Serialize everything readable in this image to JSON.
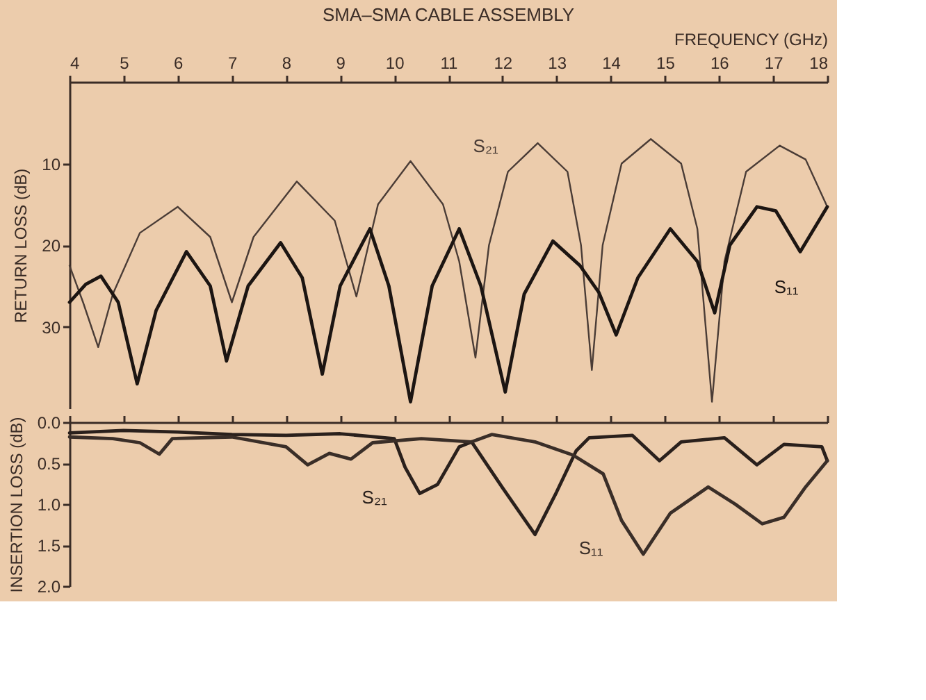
{
  "chart_data": [
    {
      "type": "line",
      "title": "SMA–SMA CABLE ASSEMBLY",
      "xlabel": "FREQUENCY (GHz)",
      "ylabel": "RETURN LOSS (dB)",
      "xlim": [
        4,
        18
      ],
      "xticks": [
        4,
        5,
        6,
        7,
        8,
        9,
        10,
        11,
        12,
        13,
        14,
        15,
        16,
        17,
        18
      ],
      "ylim": [
        40,
        0
      ],
      "yticks": [
        10,
        20,
        30
      ],
      "grid": false,
      "series": [
        {
          "name": "S₂₁",
          "color": "#4a3c36",
          "x": [
            4.0,
            4.25,
            4.53,
            4.8,
            5.3,
            6.0,
            6.6,
            7.0,
            7.4,
            8.2,
            8.9,
            9.3,
            9.7,
            10.3,
            10.9,
            11.2,
            11.5,
            11.75,
            12.1,
            12.65,
            13.2,
            13.45,
            13.65,
            13.85,
            14.2,
            14.74,
            15.3,
            15.6,
            15.87,
            16.1,
            16.5,
            17.12,
            17.6,
            18.0
          ],
          "values": [
            22.5,
            27,
            32.5,
            26,
            18.5,
            15.3,
            19,
            27,
            19,
            12.2,
            17,
            26.3,
            15,
            9.7,
            15,
            22,
            33.8,
            20,
            11,
            7.5,
            11,
            20,
            35.3,
            20,
            10,
            7,
            10,
            18,
            39.2,
            22,
            11,
            7.8,
            9.5,
            15.3
          ]
        },
        {
          "name": "S₁₁",
          "color": "#1c1512",
          "x": [
            4.0,
            4.3,
            4.58,
            4.9,
            5.25,
            5.6,
            6.16,
            6.6,
            6.9,
            7.3,
            7.9,
            8.3,
            8.67,
            9.0,
            9.55,
            9.9,
            10.3,
            10.7,
            11.2,
            11.6,
            12.05,
            12.4,
            12.93,
            13.43,
            13.78,
            14.1,
            14.5,
            15.1,
            15.6,
            15.92,
            16.2,
            16.7,
            17.05,
            17.5,
            18.0
          ],
          "values": [
            27,
            24.8,
            23.8,
            27,
            37,
            28,
            20.8,
            25,
            34.2,
            25,
            19.7,
            24,
            35.8,
            25,
            18,
            25,
            39.2,
            25,
            18,
            25,
            38,
            26,
            19.5,
            22.5,
            25.8,
            31,
            24,
            18,
            22,
            28.3,
            20,
            15.3,
            15.8,
            20.8,
            15.3
          ]
        }
      ]
    },
    {
      "type": "line",
      "ylabel": "INSERTION LOSS (dB)",
      "xlim": [
        4,
        18
      ],
      "xticks": [
        4,
        5,
        6,
        7,
        8,
        9,
        10,
        11,
        12,
        13,
        14,
        15,
        16,
        17,
        18
      ],
      "ylim": [
        2,
        0
      ],
      "yticks": [
        {
          "value": 0,
          "label": "0.0"
        },
        {
          "value": 0.5,
          "label": "0.5"
        },
        {
          "value": 1,
          "label": "1.0"
        },
        {
          "value": 1.5,
          "label": "1.5"
        },
        {
          "value": 2,
          "label": "2.0"
        }
      ],
      "tick_labels": "y",
      "grid": false,
      "series": [
        {
          "name": "S₂₁",
          "color": "#2a201c",
          "x": [
            4.0,
            5.0,
            6.0,
            7.0,
            8.0,
            9.0,
            10.0,
            10.2,
            10.47,
            10.8,
            11.2,
            11.43,
            12.0,
            12.6,
            13.0,
            13.36,
            13.6,
            14.4,
            14.9,
            15.3,
            16.1,
            16.7,
            17.2,
            17.9,
            18.0
          ],
          "values": [
            0.13,
            0.1,
            0.12,
            0.15,
            0.16,
            0.14,
            0.2,
            0.55,
            0.87,
            0.76,
            0.3,
            0.24,
            0.8,
            1.37,
            0.85,
            0.35,
            0.19,
            0.16,
            0.47,
            0.24,
            0.19,
            0.52,
            0.27,
            0.3,
            0.47
          ]
        },
        {
          "name": "S₁₁",
          "color": "#3a2e28",
          "x": [
            4.0,
            4.8,
            5.3,
            5.66,
            5.9,
            7.0,
            8.0,
            8.4,
            8.8,
            9.2,
            9.6,
            10.5,
            11.43,
            11.8,
            12.6,
            13.3,
            13.86,
            14.2,
            14.6,
            15.1,
            15.8,
            16.3,
            16.8,
            17.2,
            17.6,
            18.0
          ],
          "values": [
            0.18,
            0.2,
            0.25,
            0.39,
            0.2,
            0.18,
            0.3,
            0.52,
            0.38,
            0.45,
            0.25,
            0.2,
            0.24,
            0.15,
            0.24,
            0.4,
            0.63,
            1.2,
            1.61,
            1.11,
            0.79,
            1.0,
            1.24,
            1.16,
            0.79,
            0.47
          ]
        }
      ]
    }
  ]
}
